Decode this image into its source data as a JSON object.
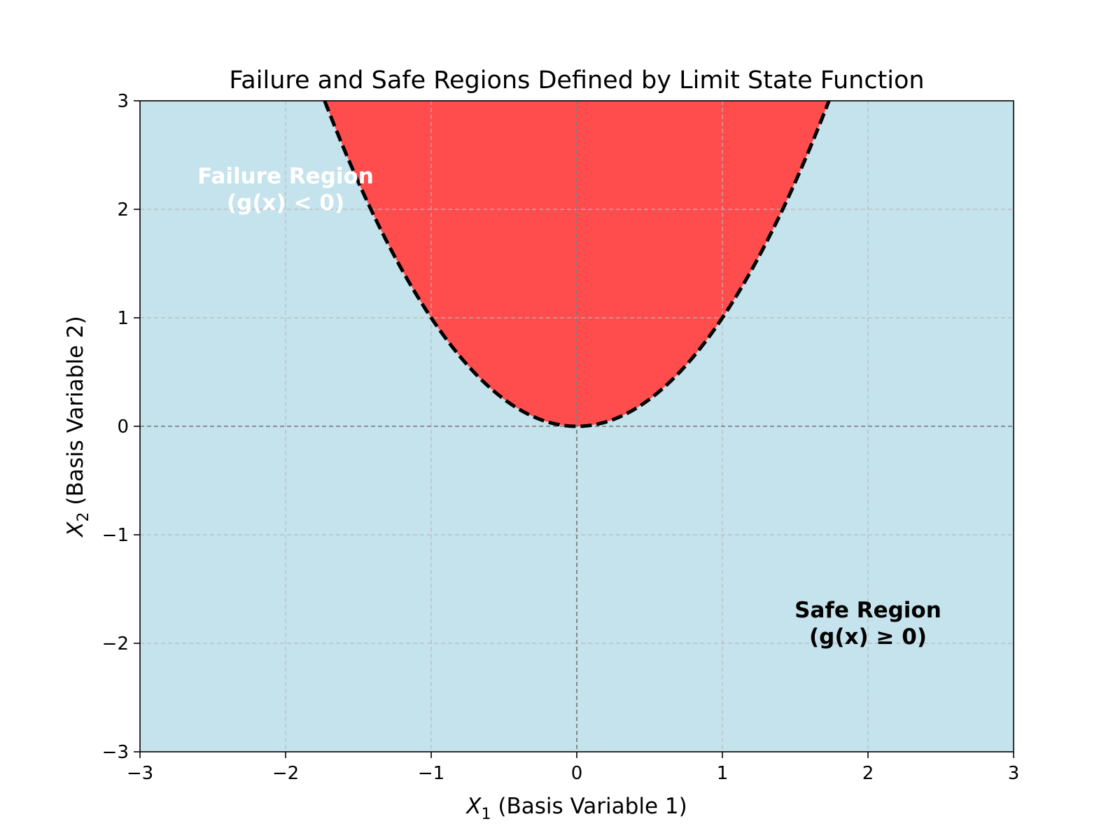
{
  "chart_data": {
    "type": "area",
    "title": "Failure and Safe Regions Defined by Limit State Function",
    "xlabel": {
      "var": "X",
      "sub": "1",
      "rest": " (Basis Variable 1)"
    },
    "ylabel": {
      "var": "X",
      "sub": "2",
      "rest": " (Basis Variable 2)"
    },
    "xlim": [
      -3,
      3
    ],
    "ylim": [
      -3,
      3
    ],
    "xticks": [
      -3,
      -2,
      -1,
      0,
      1,
      2,
      3
    ],
    "yticks": [
      -3,
      -2,
      -1,
      0,
      1,
      2,
      3
    ],
    "xtick_labels": [
      "−3",
      "−2",
      "−1",
      "0",
      "1",
      "2",
      "3"
    ],
    "ytick_labels": [
      "−3",
      "−2",
      "−1",
      "0",
      "1",
      "2",
      "3"
    ],
    "grid": true,
    "reference_lines": {
      "x": 0,
      "y": 0
    },
    "limit_state": {
      "equation": "x2 = x1^2",
      "boundary": "dashed black"
    },
    "regions": [
      {
        "name": "failure",
        "color": "#ff4d4d"
      },
      {
        "name": "safe",
        "color": "#c5e3ec"
      }
    ],
    "annotations": [
      {
        "lines": [
          "Failure Region",
          "(g(x) < 0)"
        ],
        "x": -2,
        "y": 2.2,
        "color": "#ffffff"
      },
      {
        "lines": [
          "Safe Region",
          "(g(x) ≥ 0)"
        ],
        "x": 2,
        "y": -1.8,
        "color": "#000000"
      }
    ]
  }
}
